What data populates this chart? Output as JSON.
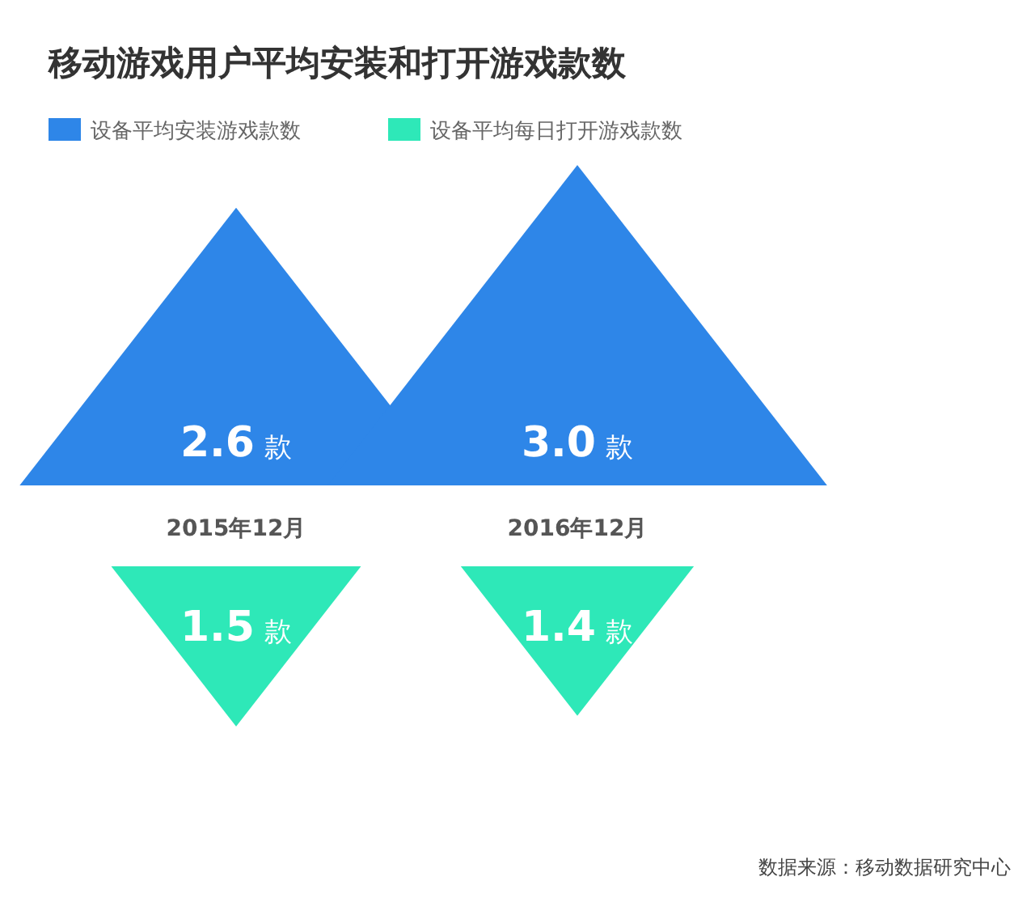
{
  "chart_data": {
    "type": "other",
    "title": "移动游戏用户平均安装和打开游戏款数",
    "categories": [
      "2015年12月",
      "2016年12月"
    ],
    "series": [
      {
        "name": "设备平均安装游戏款数",
        "color": "#2e86e8",
        "values": [
          2.6,
          3.0
        ],
        "value_labels": [
          "2.6 款",
          "3.0 款"
        ]
      },
      {
        "name": "设备平均每日打开游戏款数",
        "color": "#2ee8b8",
        "values": [
          1.5,
          1.4
        ],
        "value_labels": [
          "1.5 款",
          "1.4 款"
        ]
      }
    ],
    "legend": "top left",
    "annotations": [
      "数据来源：移动数据研究中心"
    ]
  }
}
